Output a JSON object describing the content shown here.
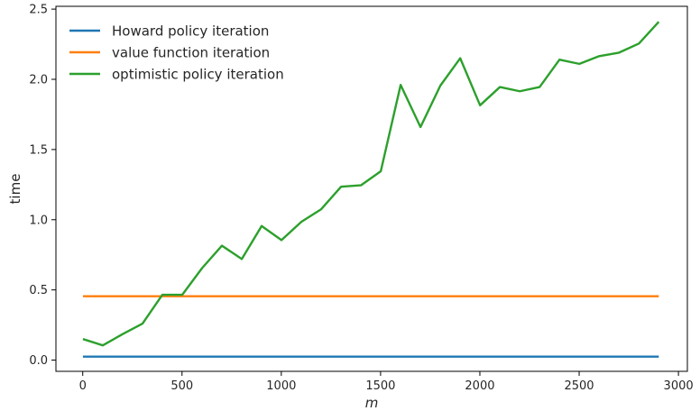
{
  "chart_data": {
    "type": "line",
    "xlabel": "m",
    "ylabel": "time",
    "xlim": [
      -135,
      3045
    ],
    "ylim": [
      -0.08,
      2.52
    ],
    "xticks": [
      0,
      500,
      1000,
      1500,
      2000,
      2500,
      3000
    ],
    "yticks": [
      0.0,
      0.5,
      1.0,
      1.5,
      2.0,
      2.5
    ],
    "xtick_labels": [
      "0",
      "500",
      "1000",
      "1500",
      "2000",
      "2500",
      "3000"
    ],
    "ytick_labels": [
      "0.0",
      "0.5",
      "1.0",
      "1.5",
      "2.0",
      "2.5"
    ],
    "grid": false,
    "legend_position": "top-left",
    "x": [
      1,
      101,
      201,
      301,
      401,
      501,
      601,
      701,
      801,
      901,
      1001,
      1101,
      1201,
      1301,
      1401,
      1501,
      1601,
      1701,
      1801,
      1901,
      2001,
      2101,
      2201,
      2301,
      2401,
      2501,
      2601,
      2701,
      2801,
      2901
    ],
    "series": [
      {
        "name": "Howard policy iteration",
        "color": "#1f77b4",
        "values": [
          0.025,
          0.025,
          0.025,
          0.025,
          0.025,
          0.025,
          0.025,
          0.025,
          0.025,
          0.025,
          0.025,
          0.025,
          0.025,
          0.025,
          0.025,
          0.025,
          0.025,
          0.025,
          0.025,
          0.025,
          0.025,
          0.025,
          0.025,
          0.025,
          0.025,
          0.025,
          0.025,
          0.025,
          0.025,
          0.025
        ]
      },
      {
        "name": "value function iteration",
        "color": "#ff7f0e",
        "values": [
          0.455,
          0.455,
          0.455,
          0.455,
          0.455,
          0.455,
          0.455,
          0.455,
          0.455,
          0.455,
          0.455,
          0.455,
          0.455,
          0.455,
          0.455,
          0.455,
          0.455,
          0.455,
          0.455,
          0.455,
          0.455,
          0.455,
          0.455,
          0.455,
          0.455,
          0.455,
          0.455,
          0.455,
          0.455,
          0.455
        ]
      },
      {
        "name": "optimistic policy iteration",
        "color": "#2ca02c",
        "values": [
          0.15,
          0.105,
          0.185,
          0.26,
          0.465,
          0.465,
          0.655,
          0.815,
          0.72,
          0.955,
          0.855,
          0.985,
          1.075,
          1.235,
          1.245,
          1.345,
          1.96,
          1.66,
          1.955,
          2.15,
          1.815,
          1.945,
          1.915,
          1.945,
          2.14,
          2.11,
          2.165,
          2.19,
          2.255,
          2.41
        ]
      }
    ]
  }
}
